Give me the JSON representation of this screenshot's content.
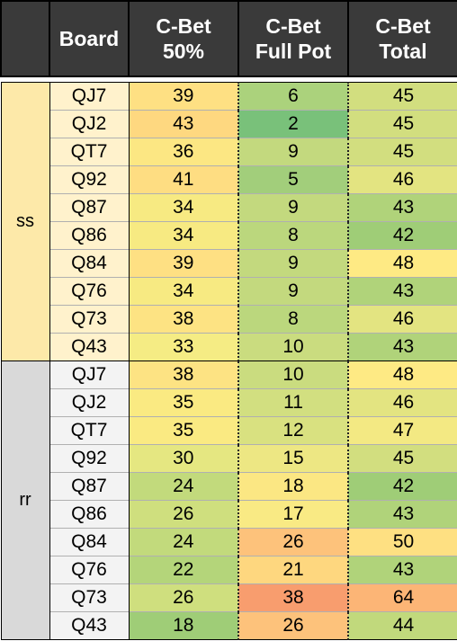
{
  "header": {
    "board": "Board",
    "c50": "C-Bet\n50%",
    "full": "C-Bet\nFull Pot",
    "total": "C-Bet\nTotal"
  },
  "groups": [
    {
      "label": "ss",
      "color": "#fde9a9",
      "boardColor": "#fff2cc",
      "rows": [
        {
          "board": "QJ7",
          "c50": "39",
          "full": "6",
          "total": "45"
        },
        {
          "board": "QJ2",
          "c50": "43",
          "full": "2",
          "total": "45"
        },
        {
          "board": "QT7",
          "c50": "36",
          "full": "9",
          "total": "45"
        },
        {
          "board": "Q92",
          "c50": "41",
          "full": "5",
          "total": "46"
        },
        {
          "board": "Q87",
          "c50": "34",
          "full": "9",
          "total": "43"
        },
        {
          "board": "Q86",
          "c50": "34",
          "full": "8",
          "total": "42"
        },
        {
          "board": "Q84",
          "c50": "39",
          "full": "9",
          "total": "48"
        },
        {
          "board": "Q76",
          "c50": "34",
          "full": "9",
          "total": "43"
        },
        {
          "board": "Q73",
          "c50": "38",
          "full": "8",
          "total": "46"
        },
        {
          "board": "Q43",
          "c50": "33",
          "full": "10",
          "total": "43"
        }
      ]
    },
    {
      "label": "rr",
      "color": "#d9d9d9",
      "boardColor": "#f3f3f3",
      "rows": [
        {
          "board": "QJ7",
          "c50": "38",
          "full": "10",
          "total": "48"
        },
        {
          "board": "QJ2",
          "c50": "35",
          "full": "11",
          "total": "46"
        },
        {
          "board": "QT7",
          "c50": "35",
          "full": "12",
          "total": "47"
        },
        {
          "board": "Q92",
          "c50": "30",
          "full": "15",
          "total": "45"
        },
        {
          "board": "Q87",
          "c50": "24",
          "full": "18",
          "total": "42"
        },
        {
          "board": "Q86",
          "c50": "26",
          "full": "17",
          "total": "43"
        },
        {
          "board": "Q84",
          "c50": "24",
          "full": "26",
          "total": "50"
        },
        {
          "board": "Q76",
          "c50": "22",
          "full": "21",
          "total": "43"
        },
        {
          "board": "Q73",
          "c50": "26",
          "full": "38",
          "total": "64"
        },
        {
          "board": "Q43",
          "c50": "18",
          "full": "26",
          "total": "44"
        }
      ]
    }
  ],
  "colors": {
    "c50": {
      "18": "#9fcd77",
      "22": "#b4d57a",
      "24": "#c2da7c",
      "26": "#cfdf7e",
      "30": "#e5e781",
      "33": "#f5ec84",
      "34": "#f7ea82",
      "35": "#faea82",
      "36": "#fce783",
      "38": "#fde383",
      "39": "#fee083",
      "41": "#fedd82",
      "43": "#fed880"
    },
    "full": {
      "2": "#79c17a",
      "5": "#a2ce7b",
      "6": "#abd27c",
      "8": "#bbd77d",
      "9": "#c3d97e",
      "10": "#cadc7f",
      "11": "#d2df80",
      "12": "#d9e180",
      "15": "#ede783",
      "17": "#f9ea84",
      "18": "#fbe783",
      "21": "#fed77f",
      "26": "#fdc27b",
      "38": "#f89d6e"
    },
    "total": {
      "42": "#9fcd77",
      "43": "#b0d37a",
      "44": "#c1d97c",
      "45": "#d2de7f",
      "46": "#e3e481",
      "47": "#f3e983",
      "48": "#feea84",
      "50": "#fee082",
      "64": "#fcb576"
    }
  }
}
